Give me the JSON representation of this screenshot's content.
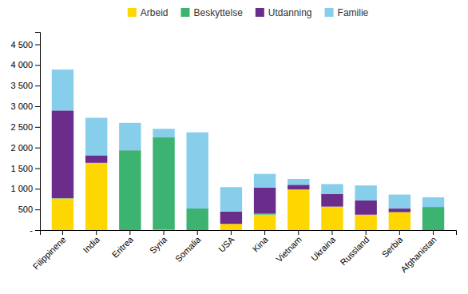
{
  "chart_data": {
    "type": "bar",
    "stacked": true,
    "grid": false,
    "legend": "top",
    "categories": [
      "Filippinene",
      "India",
      "Eritrea",
      "Syria",
      "Somalia",
      "USA",
      "Kina",
      "Vietnam",
      "Ukraina",
      "Russland",
      "Serbia",
      "Afghanistan"
    ],
    "series": [
      {
        "name": "Arbeid",
        "color": "#FFD700",
        "values": [
          765,
          1629,
          0,
          8,
          0,
          150,
          374,
          984,
          568,
          373,
          435,
          0
        ]
      },
      {
        "name": "Beskyttelse",
        "color": "#3CB371",
        "values": [
          7,
          0,
          1931,
          2235,
          522,
          0,
          30,
          0,
          1,
          0,
          0,
          559
        ]
      },
      {
        "name": "Utdanning",
        "color": "#6B2D8B",
        "values": [
          2125,
          182,
          2,
          2,
          0,
          300,
          623,
          113,
          309,
          345,
          86,
          1
        ]
      },
      {
        "name": "Familie",
        "color": "#87CEEB",
        "values": [
          992,
          909,
          664,
          209,
          1847,
          590,
          334,
          142,
          236,
          364,
          339,
          233
        ]
      }
    ],
    "ylim": [
      0,
      4800
    ],
    "yticks": [
      {
        "value": 0,
        "label": "-"
      },
      500,
      {
        "value": 1000,
        "label": "1 000"
      },
      {
        "value": 1500,
        "label": "1 500"
      },
      {
        "value": 2000,
        "label": "2 000"
      },
      {
        "value": 2500,
        "label": "2 500"
      },
      {
        "value": 3000,
        "label": "3 000"
      },
      {
        "value": 3500,
        "label": "3 500"
      },
      {
        "value": 4000,
        "label": "4 000"
      },
      {
        "value": 4500,
        "label": "4 500"
      }
    ]
  }
}
